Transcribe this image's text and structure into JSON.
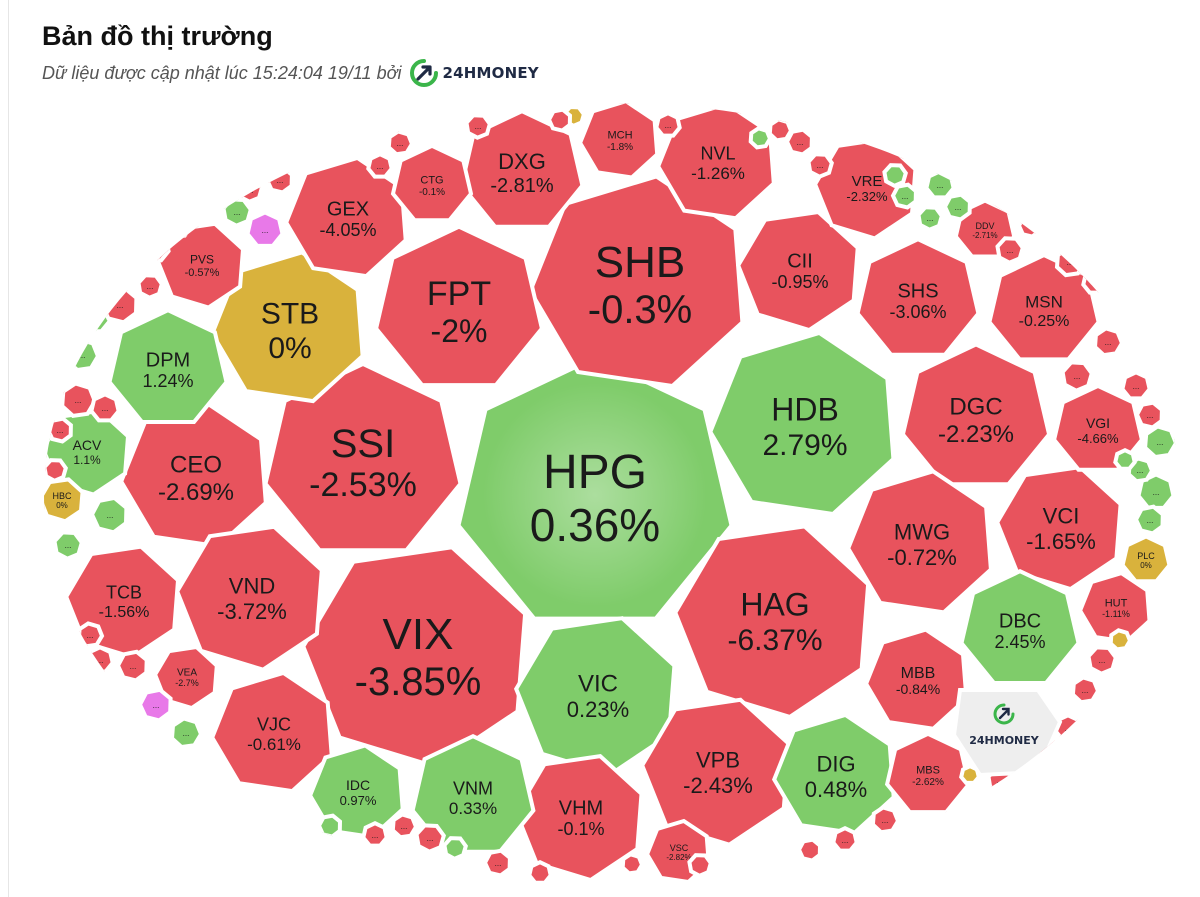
{
  "title": "Bản đồ thị trường",
  "subtitle": "Dữ liệu được cập nhật lúc 15:24:04 19/11 bởi",
  "brand": {
    "name": "24HMONEY",
    "accent": "#3bb54a",
    "dark": "#1f2a44"
  },
  "colors": {
    "down": "#e8535d",
    "up": "#7fcc6a",
    "flat": "#d9b23c",
    "ceiling": "#e879e8",
    "logo_cell": "#eeeeee"
  },
  "more_label": "...",
  "stocks": [
    {
      "ticker": "HPG",
      "change": "0.36%",
      "status": "up"
    },
    {
      "ticker": "SHB",
      "change": "-0.3%",
      "status": "down"
    },
    {
      "ticker": "VIX",
      "change": "-3.85%",
      "status": "down"
    },
    {
      "ticker": "SSI",
      "change": "-2.53%",
      "status": "down"
    },
    {
      "ticker": "HDB",
      "change": "2.79%",
      "status": "up"
    },
    {
      "ticker": "HAG",
      "change": "-6.37%",
      "status": "down"
    },
    {
      "ticker": "FPT",
      "change": "-2%",
      "status": "down"
    },
    {
      "ticker": "STB",
      "change": "0%",
      "status": "flat"
    },
    {
      "ticker": "VIC",
      "change": "0.23%",
      "status": "up"
    },
    {
      "ticker": "DXG",
      "change": "-2.81%",
      "status": "down"
    },
    {
      "ticker": "GEX",
      "change": "-4.05%",
      "status": "down"
    },
    {
      "ticker": "CII",
      "change": "-0.95%",
      "status": "down"
    },
    {
      "ticker": "DGC",
      "change": "-2.23%",
      "status": "down"
    },
    {
      "ticker": "CEO",
      "change": "-2.69%",
      "status": "down"
    },
    {
      "ticker": "VND",
      "change": "-3.72%",
      "status": "down"
    },
    {
      "ticker": "DPM",
      "change": "1.24%",
      "status": "up"
    },
    {
      "ticker": "MWG",
      "change": "-0.72%",
      "status": "down"
    },
    {
      "ticker": "VPB",
      "change": "-2.43%",
      "status": "down"
    },
    {
      "ticker": "SHS",
      "change": "-3.06%",
      "status": "down"
    },
    {
      "ticker": "NVL",
      "change": "-1.26%",
      "status": "down"
    },
    {
      "ticker": "VCI",
      "change": "-1.65%",
      "status": "down"
    },
    {
      "ticker": "DBC",
      "change": "2.45%",
      "status": "up"
    },
    {
      "ticker": "DIG",
      "change": "0.48%",
      "status": "up"
    },
    {
      "ticker": "VHM",
      "change": "-0.1%",
      "status": "down"
    },
    {
      "ticker": "VNM",
      "change": "0.33%",
      "status": "up"
    },
    {
      "ticker": "VJC",
      "change": "-0.61%",
      "status": "down"
    },
    {
      "ticker": "TCB",
      "change": "-1.56%",
      "status": "down"
    },
    {
      "ticker": "MSN",
      "change": "-0.25%",
      "status": "down"
    },
    {
      "ticker": "MBB",
      "change": "-0.84%",
      "status": "down"
    },
    {
      "ticker": "VRE",
      "change": "-2.32%",
      "status": "down"
    },
    {
      "ticker": "VGI",
      "change": "-4.66%",
      "status": "down"
    },
    {
      "ticker": "IDC",
      "change": "0.97%",
      "status": "up"
    },
    {
      "ticker": "ACV",
      "change": "1.1%",
      "status": "up"
    },
    {
      "ticker": "CTG",
      "change": "-0.1%",
      "status": "down"
    },
    {
      "ticker": "MCH",
      "change": "-1.8%",
      "status": "down"
    },
    {
      "ticker": "PVS",
      "change": "-0.57%",
      "status": "down"
    },
    {
      "ticker": "MBS",
      "change": "-2.62%",
      "status": "down"
    },
    {
      "ticker": "HUT",
      "change": "-1.11%",
      "status": "down"
    },
    {
      "ticker": "VEA",
      "change": "-2.7%",
      "status": "down"
    },
    {
      "ticker": "DDV",
      "change": "-2.71%",
      "status": "down"
    },
    {
      "ticker": "VSC",
      "change": "-2.82%",
      "status": "down"
    },
    {
      "ticker": "HBC",
      "change": "0%",
      "status": "flat"
    },
    {
      "ticker": "PLC",
      "change": "0%",
      "status": "flat"
    }
  ],
  "minor_cells": [
    {
      "status": "ceiling"
    },
    {
      "status": "ceiling"
    },
    {
      "status": "up"
    },
    {
      "status": "up"
    },
    {
      "status": "up"
    },
    {
      "status": "up"
    },
    {
      "status": "up"
    },
    {
      "status": "up"
    },
    {
      "status": "up"
    },
    {
      "status": "up"
    },
    {
      "status": "up"
    },
    {
      "status": "up"
    },
    {
      "status": "up"
    },
    {
      "status": "up"
    },
    {
      "status": "flat"
    },
    {
      "status": "flat"
    },
    {
      "status": "flat"
    },
    {
      "status": "down"
    },
    {
      "status": "down"
    },
    {
      "status": "down"
    },
    {
      "status": "down"
    },
    {
      "status": "down"
    },
    {
      "status": "down"
    },
    {
      "status": "down"
    },
    {
      "status": "down"
    },
    {
      "status": "down"
    },
    {
      "status": "down"
    },
    {
      "status": "down"
    },
    {
      "status": "down"
    },
    {
      "status": "down"
    },
    {
      "status": "down"
    },
    {
      "status": "down"
    },
    {
      "status": "down"
    },
    {
      "status": "down"
    },
    {
      "status": "down"
    },
    {
      "status": "down"
    },
    {
      "status": "down"
    },
    {
      "status": "down"
    },
    {
      "status": "down"
    },
    {
      "status": "down"
    },
    {
      "status": "down"
    },
    {
      "status": "down"
    },
    {
      "status": "down"
    },
    {
      "status": "down"
    },
    {
      "status": "down"
    },
    {
      "status": "down"
    },
    {
      "status": "down"
    },
    {
      "status": "down"
    },
    {
      "status": "down"
    },
    {
      "status": "down"
    },
    {
      "status": "down"
    },
    {
      "status": "down"
    },
    {
      "status": "down"
    },
    {
      "status": "down"
    },
    {
      "status": "down"
    },
    {
      "status": "down"
    },
    {
      "status": "down"
    },
    {
      "status": "down"
    },
    {
      "status": "down"
    },
    {
      "status": "down"
    },
    {
      "status": "down"
    },
    {
      "status": "up"
    },
    {
      "status": "up"
    },
    {
      "status": "up"
    },
    {
      "status": "up"
    },
    {
      "status": "up"
    },
    {
      "status": "up"
    },
    {
      "status": "up"
    }
  ]
}
